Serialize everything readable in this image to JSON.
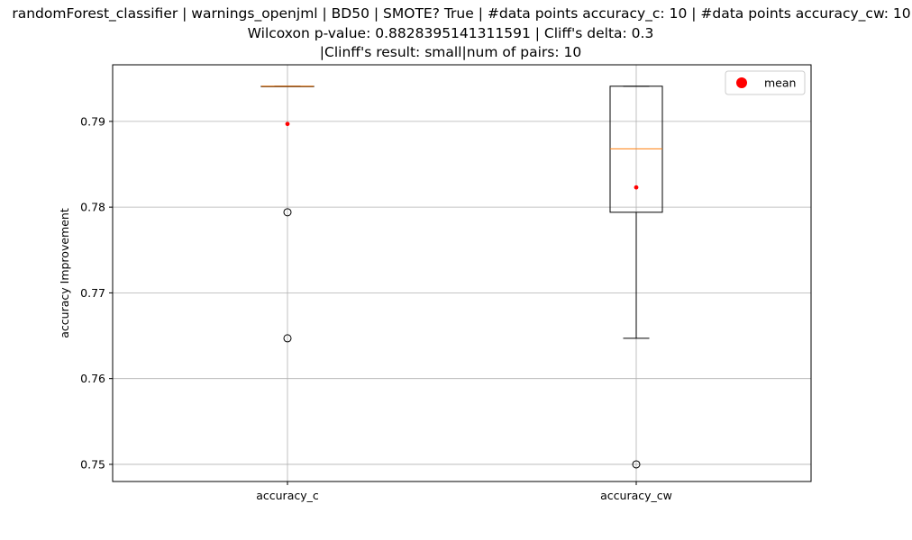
{
  "title_lines": [
    "randomForest_classifier | warnings_openjml | BD50 | SMOTE? True | #data points accuracy_c: 10 | #data points accuracy_cw: 10",
    "Wilcoxon p-value: 0.8828395141311591 | Cliff's delta: 0.3",
    "|Clinff's result: small|num of pairs: 10"
  ],
  "chart_data": {
    "type": "box",
    "title": "randomForest_classifier | warnings_openjml | BD50 | SMOTE? True | #data points accuracy_c: 10 | #data points accuracy_cw: 10 / Wilcoxon p-value: 0.8828395141311591 | Cliff's delta: 0.3 / |Clinff's result: small|num of pairs: 10",
    "xlabel": "",
    "ylabel": "accuracy Improvement",
    "categories": [
      "accuracy_c",
      "accuracy_cw"
    ],
    "ylim": [
      0.748,
      0.7966
    ],
    "yticks": [
      0.75,
      0.76,
      0.77,
      0.78,
      0.79
    ],
    "ytick_labels": [
      "0.75",
      "0.76",
      "0.77",
      "0.78",
      "0.79"
    ],
    "grid": true,
    "legend": {
      "position": "top-right",
      "entries": [
        "mean"
      ]
    },
    "boxes": [
      {
        "category": "accuracy_c",
        "q1": 0.7941,
        "median": 0.7941,
        "q3": 0.7941,
        "whisker_low": 0.7941,
        "whisker_high": 0.7941,
        "mean": 0.7897,
        "outliers": [
          0.7794,
          0.7647
        ]
      },
      {
        "category": "accuracy_cw",
        "q1": 0.7794,
        "median": 0.7868,
        "q3": 0.7941,
        "whisker_low": 0.7647,
        "whisker_high": 0.7941,
        "mean": 0.7823,
        "outliers": [
          0.75
        ]
      }
    ],
    "colors": {
      "median": "#ff7f0e",
      "mean": "#ff0000",
      "grid": "#b0b0b0"
    }
  }
}
